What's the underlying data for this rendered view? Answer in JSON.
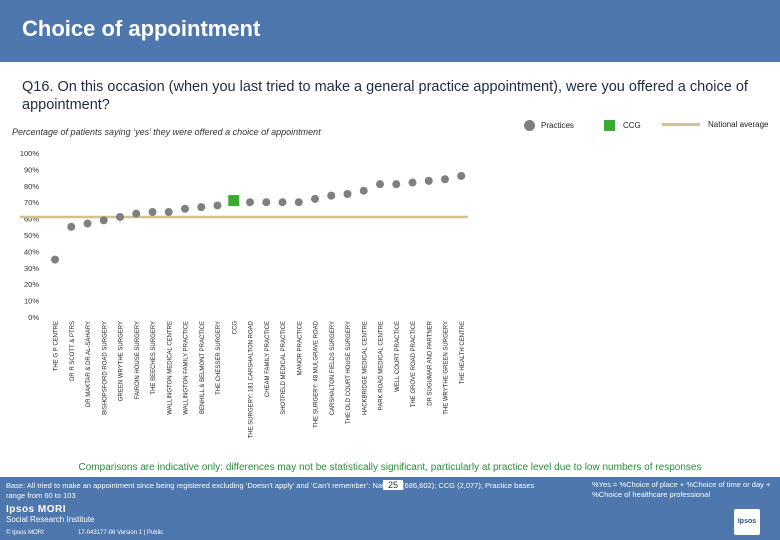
{
  "title": "Choice of appointment",
  "question": "Q16. On this occasion (when you last tried to make a general practice appointment), were you offered a choice of appointment?",
  "subtitle": "Percentage of patients saying ‘yes’ they were offered a choice of appointment",
  "legend": {
    "practices": "Practices",
    "ccg": "CCG",
    "national": "National average"
  },
  "colors": {
    "header": "#4e77ad",
    "practice": "#7f7f7f",
    "ccg": "#3aaa35",
    "national": "#cfc48f",
    "comparison_text": "#2d8a3e"
  },
  "chart_data": {
    "type": "scatter",
    "ylim": [
      0,
      100
    ],
    "yticks": [
      "0%",
      "10%",
      "20%",
      "30%",
      "40%",
      "50%",
      "60%",
      "70%",
      "80%",
      "90%",
      "100%"
    ],
    "national_average": 61,
    "categories": [
      "THE G P CENTRE",
      "DR R SCOTT & PTRS",
      "DR MAKTAR & DR AL-SAHARY",
      "BISHOPSFORD ROAD SURGERY",
      "GREEN WRYTHE SURGERY",
      "FAIROIN HOUSE SURGERY",
      "THE BEECHES SURGERY",
      "WALLINGTON MEDICAL CENTRE",
      "WALLINGTON FAMILY PRACTICE",
      "BENHILL & BELMONT PRACTICE",
      "THE CHESSER SURGERY",
      "CCG",
      "THE SURGERY: 181 CARSHALTON ROAD",
      "CHEAM FAMILY PRACTICE",
      "SHOTFIELD MEDICAL PRACTICE",
      "MANOR PRACTICE",
      "THE SURGERY: 48 MULGRAVE ROAD",
      "CARSHALTON FIELDS SURGERY",
      "THE OLD COURT HOUSE SURGERY",
      "HACKBRIDGE MEDICAL CENTRE",
      "PARK ROAD MEDICAL CENTRE",
      "WELL COURT PRACTICE",
      "THE GROVE ROAD PRACTICE",
      "DR SUGUMAR AND PARTNER",
      "THE WRYTHE GREEN SURGERY",
      "THE HEALTH CENTRE"
    ],
    "values": [
      35,
      55,
      57,
      59,
      61,
      63,
      64,
      64,
      66,
      67,
      68,
      71,
      70,
      70,
      70,
      70,
      72,
      74,
      75,
      77,
      81,
      81,
      82,
      83,
      84,
      86
    ],
    "highlight_category": "CCG"
  },
  "comparisons_note": "Comparisons are indicative only: differences may not be statistically significant, particularly at practice level due to low numbers of responses",
  "footer": {
    "base_note": "Base: All tried to make an appointment since being registered excluding ‘Doesn’t apply’ and ‘Can’t remember’: National (686,602); CCG (2,077); Practice bases range from 60 to 103",
    "yes_note": "%Yes = %Choice of place + %Choice of time or day + %Choice of healthcare professional",
    "page_number": "25",
    "logo_ipsos": "Ipsos MORI",
    "logo_sri": "Social Research Institute",
    "copyright": "© Ipsos MORI",
    "job": "17-043177-06 Version 1 | Public",
    "corner_logo": "Ipsos"
  }
}
